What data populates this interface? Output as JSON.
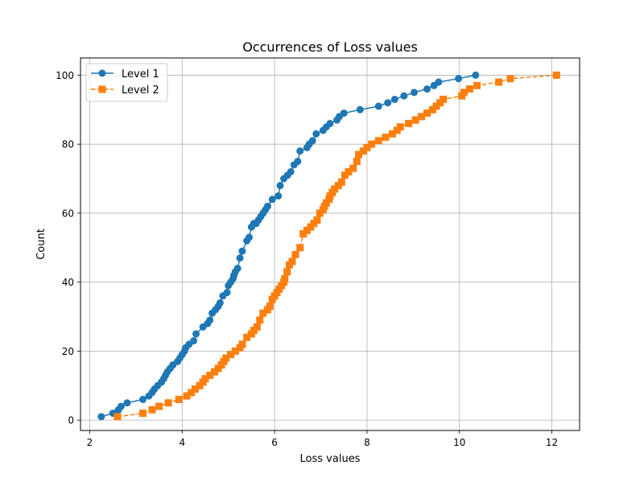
{
  "chart_data": {
    "type": "line",
    "title": "Occurrences of Loss values",
    "xlabel": "Loss values",
    "ylabel": "Count",
    "xlim": [
      1.8,
      12.6
    ],
    "ylim": [
      -3,
      105
    ],
    "xticks": [
      2,
      4,
      6,
      8,
      10,
      12
    ],
    "yticks": [
      0,
      20,
      40,
      60,
      80,
      100
    ],
    "grid": true,
    "legend_position": "upper-left",
    "series": [
      {
        "name": "Level 1",
        "color": "#1f77b4",
        "marker": "circle",
        "linestyle": "solid",
        "points": [
          [
            2.25,
            1
          ],
          [
            2.5,
            2
          ],
          [
            2.62,
            3
          ],
          [
            2.68,
            4
          ],
          [
            2.81,
            5
          ],
          [
            3.15,
            6
          ],
          [
            3.28,
            7
          ],
          [
            3.35,
            8
          ],
          [
            3.4,
            9
          ],
          [
            3.47,
            10
          ],
          [
            3.55,
            11
          ],
          [
            3.6,
            12
          ],
          [
            3.64,
            13
          ],
          [
            3.68,
            14
          ],
          [
            3.74,
            15
          ],
          [
            3.8,
            16
          ],
          [
            3.9,
            17
          ],
          [
            3.95,
            18
          ],
          [
            4.0,
            19
          ],
          [
            4.05,
            20
          ],
          [
            4.08,
            21
          ],
          [
            4.15,
            22
          ],
          [
            4.25,
            23
          ],
          [
            4.3,
            25
          ],
          [
            4.45,
            27
          ],
          [
            4.55,
            28
          ],
          [
            4.6,
            29
          ],
          [
            4.65,
            31
          ],
          [
            4.72,
            32
          ],
          [
            4.78,
            33
          ],
          [
            4.82,
            34
          ],
          [
            4.88,
            36
          ],
          [
            4.97,
            37
          ],
          [
            5.0,
            39
          ],
          [
            5.05,
            40
          ],
          [
            5.1,
            41
          ],
          [
            5.12,
            42
          ],
          [
            5.15,
            43
          ],
          [
            5.2,
            44
          ],
          [
            5.25,
            47
          ],
          [
            5.3,
            49
          ],
          [
            5.4,
            52
          ],
          [
            5.45,
            53
          ],
          [
            5.5,
            56
          ],
          [
            5.55,
            57
          ],
          [
            5.6,
            57
          ],
          [
            5.65,
            58
          ],
          [
            5.7,
            59
          ],
          [
            5.75,
            60
          ],
          [
            5.8,
            61
          ],
          [
            5.85,
            62
          ],
          [
            5.95,
            64
          ],
          [
            6.08,
            65
          ],
          [
            6.12,
            68
          ],
          [
            6.2,
            70
          ],
          [
            6.28,
            71
          ],
          [
            6.35,
            72
          ],
          [
            6.42,
            74
          ],
          [
            6.5,
            75
          ],
          [
            6.55,
            78
          ],
          [
            6.7,
            79
          ],
          [
            6.75,
            80
          ],
          [
            6.82,
            81
          ],
          [
            6.9,
            83
          ],
          [
            7.05,
            84
          ],
          [
            7.12,
            85
          ],
          [
            7.2,
            86
          ],
          [
            7.35,
            87
          ],
          [
            7.4,
            88
          ],
          [
            7.5,
            89
          ],
          [
            7.85,
            90
          ],
          [
            8.25,
            91
          ],
          [
            8.45,
            92
          ],
          [
            8.6,
            93
          ],
          [
            8.8,
            94
          ],
          [
            9.02,
            95
          ],
          [
            9.3,
            96
          ],
          [
            9.45,
            97
          ],
          [
            9.55,
            98
          ],
          [
            9.98,
            99
          ],
          [
            10.35,
            100
          ]
        ]
      },
      {
        "name": "Level 2",
        "color": "#ff7f0e",
        "marker": "square",
        "linestyle": "dashed",
        "points": [
          [
            2.6,
            1
          ],
          [
            3.15,
            2
          ],
          [
            3.35,
            3
          ],
          [
            3.5,
            4
          ],
          [
            3.7,
            5
          ],
          [
            3.93,
            6
          ],
          [
            4.1,
            7
          ],
          [
            4.2,
            8
          ],
          [
            4.28,
            9
          ],
          [
            4.38,
            10
          ],
          [
            4.45,
            11
          ],
          [
            4.5,
            12
          ],
          [
            4.6,
            13
          ],
          [
            4.7,
            14
          ],
          [
            4.78,
            15
          ],
          [
            4.85,
            16
          ],
          [
            4.9,
            17
          ],
          [
            4.95,
            18
          ],
          [
            5.05,
            19
          ],
          [
            5.15,
            20
          ],
          [
            5.25,
            21
          ],
          [
            5.3,
            22
          ],
          [
            5.4,
            24
          ],
          [
            5.5,
            25
          ],
          [
            5.55,
            26
          ],
          [
            5.62,
            27
          ],
          [
            5.68,
            29
          ],
          [
            5.75,
            31
          ],
          [
            5.85,
            32
          ],
          [
            5.9,
            33
          ],
          [
            5.95,
            35
          ],
          [
            6.0,
            36
          ],
          [
            6.05,
            37
          ],
          [
            6.1,
            38
          ],
          [
            6.15,
            39
          ],
          [
            6.2,
            40
          ],
          [
            6.22,
            41
          ],
          [
            6.27,
            43
          ],
          [
            6.32,
            45
          ],
          [
            6.38,
            46
          ],
          [
            6.45,
            48
          ],
          [
            6.55,
            50
          ],
          [
            6.62,
            54
          ],
          [
            6.7,
            55
          ],
          [
            6.78,
            56
          ],
          [
            6.85,
            57
          ],
          [
            6.92,
            58
          ],
          [
            6.98,
            60
          ],
          [
            7.05,
            61
          ],
          [
            7.08,
            62
          ],
          [
            7.12,
            63
          ],
          [
            7.18,
            64
          ],
          [
            7.2,
            65
          ],
          [
            7.25,
            66
          ],
          [
            7.3,
            67
          ],
          [
            7.38,
            68
          ],
          [
            7.45,
            69
          ],
          [
            7.52,
            71
          ],
          [
            7.6,
            72
          ],
          [
            7.7,
            73
          ],
          [
            7.78,
            75
          ],
          [
            7.82,
            77
          ],
          [
            7.92,
            78
          ],
          [
            8.0,
            79
          ],
          [
            8.1,
            80
          ],
          [
            8.25,
            81
          ],
          [
            8.4,
            82
          ],
          [
            8.55,
            83
          ],
          [
            8.65,
            84
          ],
          [
            8.72,
            85
          ],
          [
            8.9,
            86
          ],
          [
            9.05,
            87
          ],
          [
            9.18,
            88
          ],
          [
            9.3,
            89
          ],
          [
            9.42,
            90
          ],
          [
            9.5,
            91
          ],
          [
            9.58,
            92
          ],
          [
            9.65,
            93
          ],
          [
            10.05,
            94
          ],
          [
            10.1,
            95
          ],
          [
            10.22,
            96
          ],
          [
            10.38,
            97
          ],
          [
            10.85,
            98
          ],
          [
            11.1,
            99
          ],
          [
            12.1,
            100
          ]
        ]
      }
    ]
  }
}
